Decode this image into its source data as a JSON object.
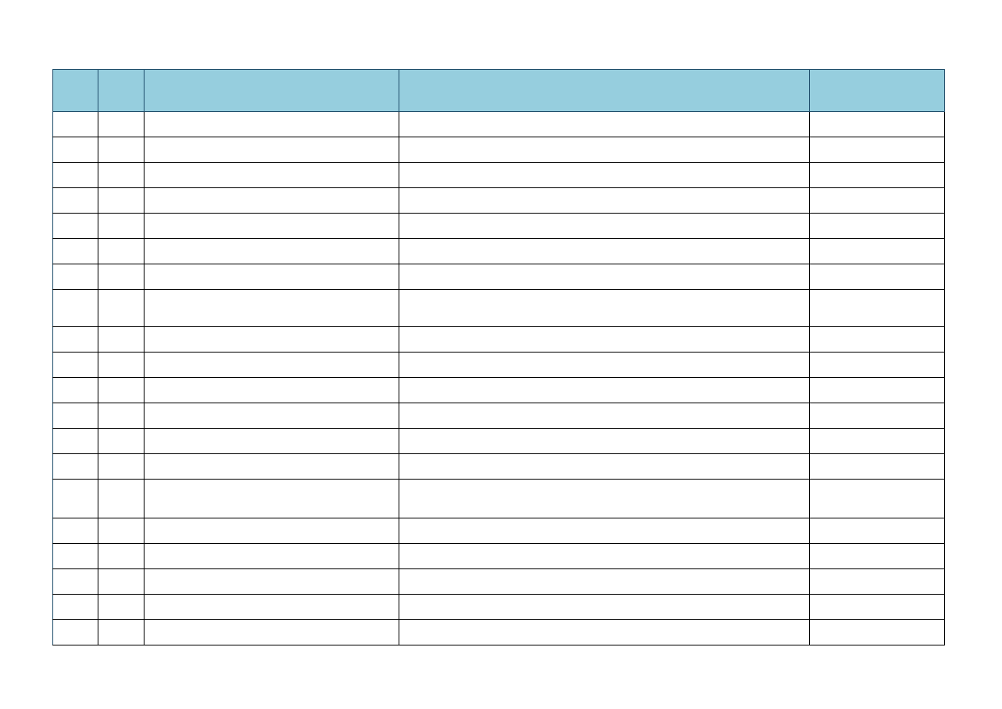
{
  "colors": {
    "header_bg": "#96CEDE",
    "header_border": "#1F4E6B",
    "grid": "#000000"
  },
  "table": {
    "headers": [
      "",
      "",
      "",
      "",
      ""
    ],
    "rows": [
      [
        "",
        "",
        "",
        "",
        ""
      ],
      [
        "",
        "",
        "",
        "",
        ""
      ],
      [
        "",
        "",
        "",
        "",
        ""
      ],
      [
        "",
        "",
        "",
        "",
        ""
      ],
      [
        "",
        "",
        "",
        "",
        ""
      ],
      [
        "",
        "",
        "",
        "",
        ""
      ],
      [
        "",
        "",
        "",
        "",
        ""
      ],
      [
        "",
        "",
        "",
        "",
        ""
      ],
      [
        "",
        "",
        "",
        "",
        ""
      ],
      [
        "",
        "",
        "",
        "",
        ""
      ],
      [
        "",
        "",
        "",
        "",
        ""
      ],
      [
        "",
        "",
        "",
        "",
        ""
      ],
      [
        "",
        "",
        "",
        "",
        ""
      ],
      [
        "",
        "",
        "",
        "",
        ""
      ],
      [
        "",
        "",
        "",
        "",
        ""
      ],
      [
        "",
        "",
        "",
        "",
        ""
      ],
      [
        "",
        "",
        "",
        "",
        ""
      ],
      [
        "",
        "",
        "",
        "",
        ""
      ],
      [
        "",
        "",
        "",
        "",
        ""
      ],
      [
        "",
        "",
        "",
        "",
        ""
      ]
    ]
  }
}
